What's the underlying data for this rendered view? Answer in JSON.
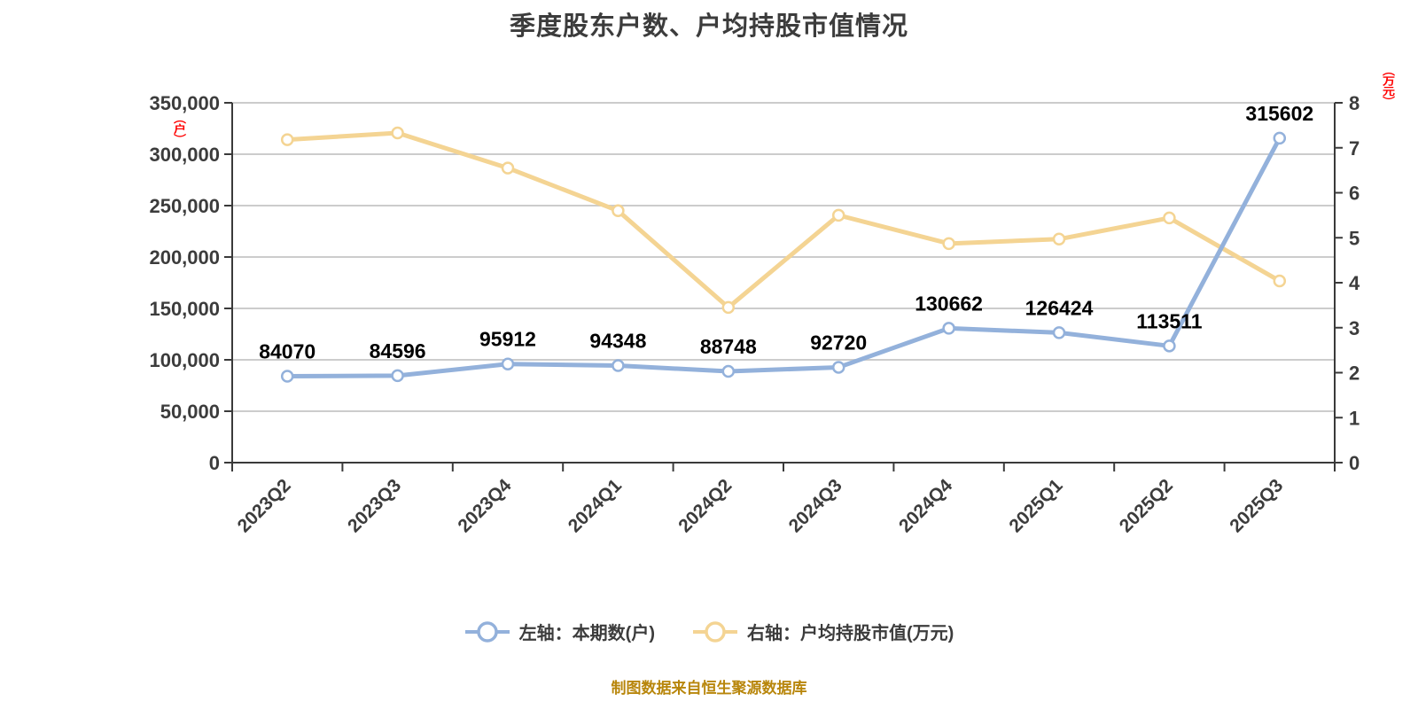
{
  "title": "季度股东户数、户均持股市值情况",
  "source_note": "制图数据来自恒生聚源数据库",
  "legend": {
    "left": "左轴：本期数(户)",
    "right": "右轴：户均持股市值(万元)"
  },
  "colors": {
    "left_series": "#93b1db",
    "right_series": "#f4d493",
    "marker_fill": "#ffffff",
    "grid": "#cccccc",
    "axis": "#3a3a3a",
    "tick_text": "#3c3c3c",
    "title_text": "#3c3c3c",
    "data_label_text": "#000000",
    "unit_text": "#ff0000",
    "source_text": "#b8860b"
  },
  "chart_data": {
    "type": "line",
    "title": "季度股东户数、户均持股市值情况",
    "categories": [
      "2023Q2",
      "2023Q3",
      "2023Q4",
      "2024Q1",
      "2024Q2",
      "2024Q3",
      "2024Q4",
      "2025Q1",
      "2025Q2",
      "2025Q3"
    ],
    "series": [
      {
        "name": "左轴：本期数(户)",
        "axis": "left",
        "values": [
          84070,
          84596,
          95912,
          94348,
          88748,
          92720,
          130662,
          126424,
          113511,
          315602
        ],
        "show_labels": true
      },
      {
        "name": "右轴：户均持股市值(万元)",
        "axis": "right",
        "values": [
          7.18,
          7.33,
          6.55,
          5.6,
          3.45,
          5.5,
          4.87,
          4.97,
          5.44,
          4.04
        ],
        "show_labels": false
      }
    ],
    "left_axis": {
      "min": 0,
      "max": 350000,
      "step": 50000,
      "unit": "（户）"
    },
    "right_axis": {
      "min": 0,
      "max": 8,
      "step": 1,
      "unit": "（万元）"
    },
    "grid": true,
    "x_label_rotation": 45,
    "legend_position": "bottom"
  }
}
